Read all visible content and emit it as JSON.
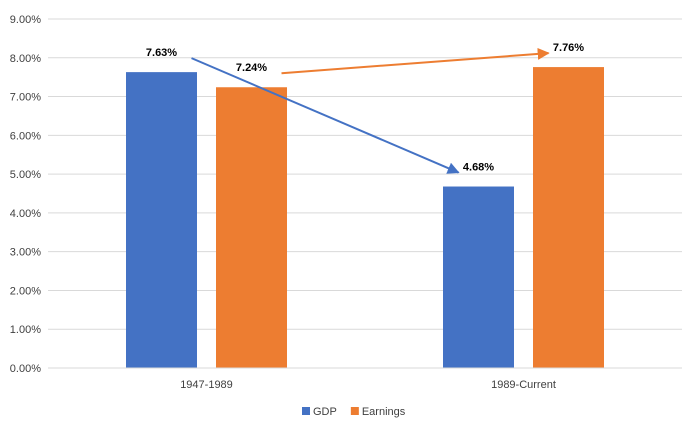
{
  "chart_data": {
    "type": "bar",
    "categories": [
      "1947-1989",
      "1989-Current"
    ],
    "series": [
      {
        "name": "GDP",
        "values": [
          7.63,
          4.68
        ],
        "labels": [
          "7.63%",
          "4.68%"
        ]
      },
      {
        "name": "Earnings",
        "values": [
          7.24,
          7.76
        ],
        "labels": [
          "7.24%",
          "7.76%"
        ]
      }
    ],
    "ylim": [
      0,
      9
    ],
    "yticks": [
      0,
      1,
      2,
      3,
      4,
      5,
      6,
      7,
      8,
      9
    ],
    "ytick_labels": [
      "0.00%",
      "1.00%",
      "2.00%",
      "3.00%",
      "4.00%",
      "5.00%",
      "6.00%",
      "7.00%",
      "8.00%",
      "9.00%"
    ],
    "grid": true,
    "legend_position": "bottom",
    "colors": {
      "GDP": "#4472C4",
      "Earnings": "#ED7D31",
      "grid": "#D9D9D9",
      "text": "#404040"
    },
    "arrows": [
      {
        "series": "GDP",
        "from_category": "1947-1989",
        "to_category": "1989-Current"
      },
      {
        "series": "Earnings",
        "from_category": "1947-1989",
        "to_category": "1989-Current"
      }
    ]
  }
}
